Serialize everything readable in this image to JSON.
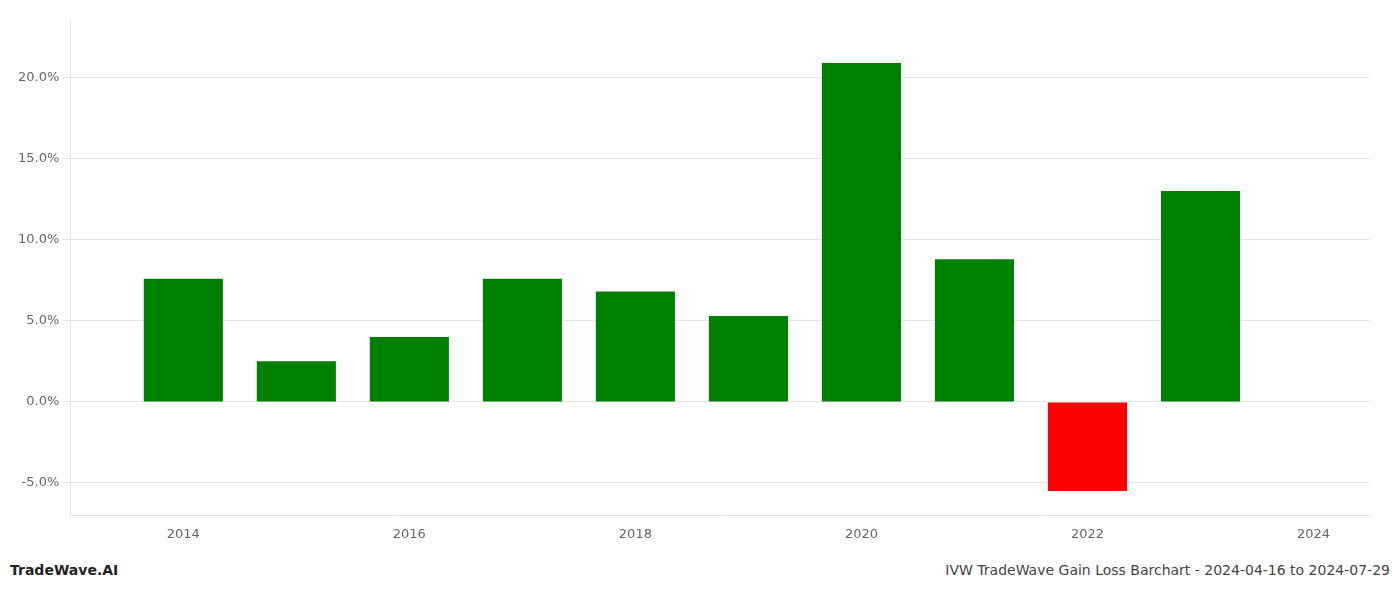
{
  "chart_data": {
    "type": "bar",
    "x": [
      2014,
      2015,
      2016,
      2017,
      2018,
      2019,
      2020,
      2021,
      2022,
      2023
    ],
    "values": [
      0.076,
      0.025,
      0.04,
      0.076,
      0.068,
      0.053,
      0.209,
      0.088,
      -0.055,
      0.13
    ],
    "colors": [
      "#008000",
      "#008000",
      "#008000",
      "#008000",
      "#008000",
      "#008000",
      "#008000",
      "#008000",
      "#ff0000",
      "#008000"
    ],
    "xlim": [
      2013.0,
      2024.5
    ],
    "xticks": [
      2014,
      2016,
      2018,
      2020,
      2022,
      2024
    ],
    "ylim": [
      -0.07,
      0.235
    ],
    "yticks": [
      {
        "value": -0.05,
        "label": "-5.0%"
      },
      {
        "value": 0.0,
        "label": "0.0%"
      },
      {
        "value": 0.05,
        "label": "5.0%"
      },
      {
        "value": 0.1,
        "label": "10.0%"
      },
      {
        "value": 0.15,
        "label": "15.0%"
      },
      {
        "value": 0.2,
        "label": "20.0%"
      }
    ],
    "grid": true,
    "annotations": [
      "TradeWave.AI",
      "IVW TradeWave Gain Loss Barchart - 2024-04-16 to 2024-07-29"
    ]
  }
}
